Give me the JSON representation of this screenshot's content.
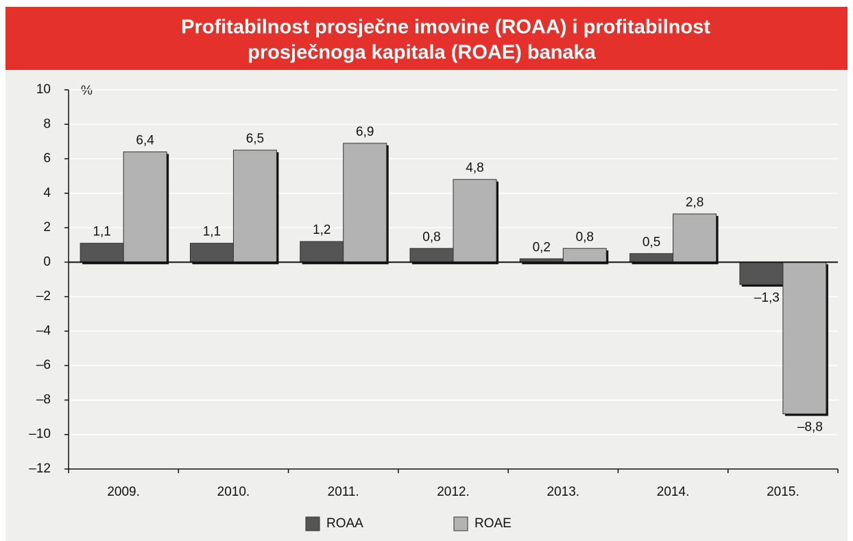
{
  "chart_data": {
    "type": "bar",
    "title": "Profitabilnost prosječne imovine (ROAA) i profitabilnost prosječnoga kapitala (ROAE) banaka",
    "title_lines": [
      "Profitabilnost prosječne imovine (ROAA) i profitabilnost",
      "prosječnoga kapitala (ROAE) banaka"
    ],
    "y_unit": "%",
    "categories": [
      "2009.",
      "2010.",
      "2011.",
      "2012.",
      "2013.",
      "2014.",
      "2015."
    ],
    "series": [
      {
        "name": "ROAA",
        "color": "#555555",
        "values": [
          1.1,
          1.1,
          1.2,
          0.8,
          0.2,
          0.5,
          -1.3
        ],
        "value_labels": [
          "1,1",
          "1,1",
          "1,2",
          "0,8",
          "0,2",
          "0,5",
          "–1,3"
        ]
      },
      {
        "name": "ROAE",
        "color": "#b3b3b3",
        "values": [
          6.4,
          6.5,
          6.9,
          4.8,
          0.8,
          2.8,
          -8.8
        ],
        "value_labels": [
          "6,4",
          "6,5",
          "6,9",
          "4,8",
          "0,8",
          "2,8",
          "–8,8"
        ]
      }
    ],
    "ylim": [
      -12,
      10
    ],
    "yticks": [
      {
        "value": -12,
        "label": "–12"
      },
      {
        "value": -10,
        "label": "–10"
      },
      {
        "value": -8,
        "label": "–8"
      },
      {
        "value": -6,
        "label": "–6"
      },
      {
        "value": -4,
        "label": "–4"
      },
      {
        "value": -2,
        "label": "–2"
      },
      0,
      2,
      4,
      6,
      8,
      10
    ],
    "grid": true,
    "legend": "bottom"
  }
}
